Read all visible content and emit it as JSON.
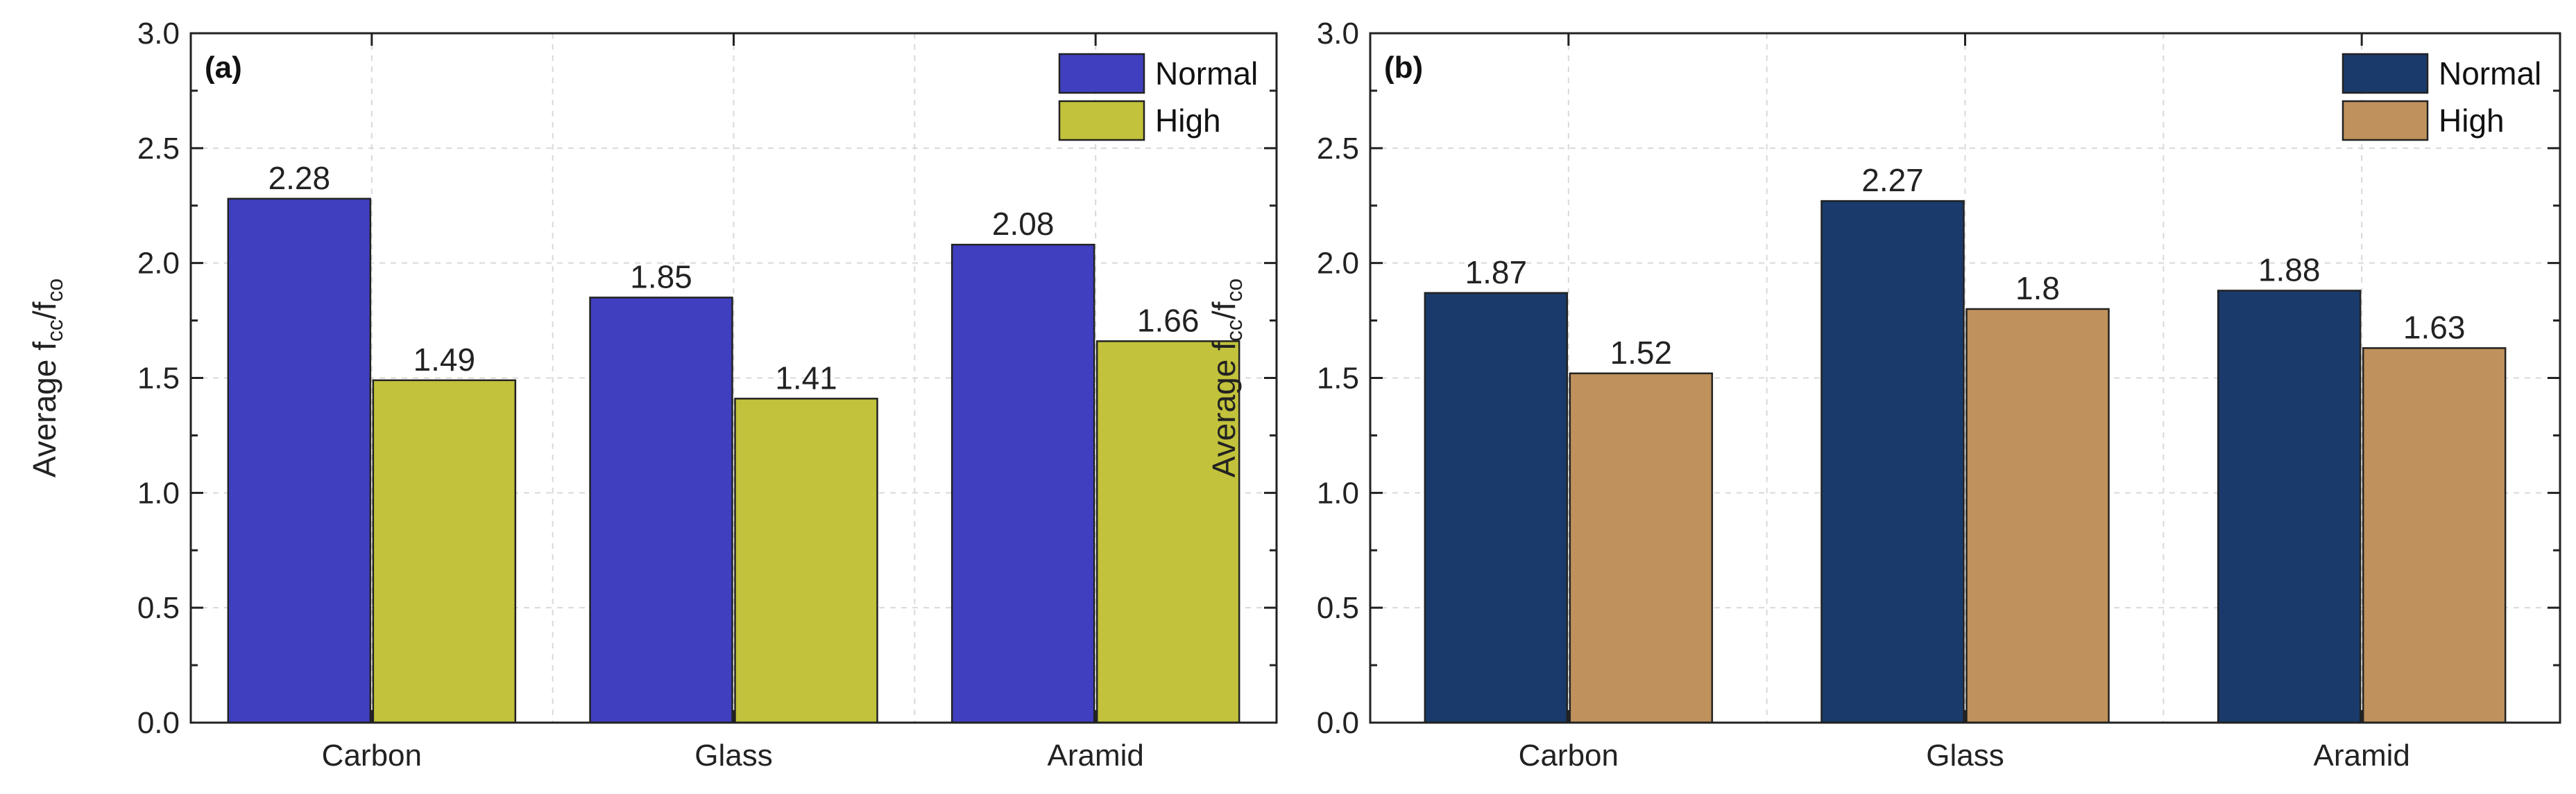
{
  "chart_data": [
    {
      "type": "bar",
      "panel_label": "(a)",
      "categories": [
        "Carbon",
        "Glass",
        "Aramid"
      ],
      "series": [
        {
          "name": "Normal",
          "values": [
            2.28,
            1.85,
            2.08
          ],
          "labels": [
            "2.28",
            "1.85",
            "2.08"
          ],
          "color": "#3f3fc0"
        },
        {
          "name": "High",
          "values": [
            1.49,
            1.41,
            1.66
          ],
          "labels": [
            "1.49",
            "1.41",
            "1.66"
          ],
          "color": "#c2c23c"
        }
      ],
      "ylabel": {
        "prefix": "Average f",
        "sub1": "cc",
        "mid": "/f",
        "sub2": "co"
      },
      "xlabel": "",
      "ylim": [
        0,
        3.0
      ],
      "yticks": [
        "0.0",
        "0.5",
        "1.0",
        "1.5",
        "2.0",
        "2.5",
        "3.0"
      ],
      "grid": true,
      "legend_position": "top-right"
    },
    {
      "type": "bar",
      "panel_label": "(b)",
      "categories": [
        "Carbon",
        "Glass",
        "Aramid"
      ],
      "series": [
        {
          "name": "Normal",
          "values": [
            1.87,
            2.27,
            1.88
          ],
          "labels": [
            "1.87",
            "2.27",
            "1.88"
          ],
          "color": "#193a6b"
        },
        {
          "name": "High",
          "values": [
            1.52,
            1.8,
            1.63
          ],
          "labels": [
            "1.52",
            "1.8",
            "1.63"
          ],
          "color": "#bf915c"
        }
      ],
      "ylabel": {
        "prefix": "Average f",
        "sub1": "cc",
        "mid": "/f",
        "sub2": "co"
      },
      "xlabel": "",
      "ylim": [
        0,
        3.0
      ],
      "yticks": [
        "0.0",
        "0.5",
        "1.0",
        "1.5",
        "2.0",
        "2.5",
        "3.0"
      ],
      "grid": true,
      "legend_position": "top-right"
    }
  ]
}
